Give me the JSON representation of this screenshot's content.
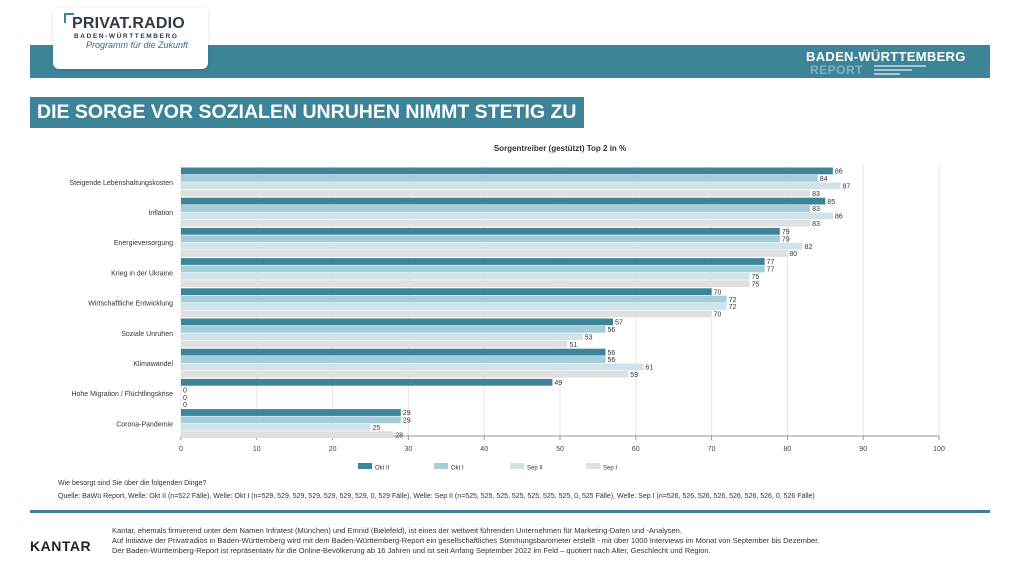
{
  "header": {
    "logo_title": "PRIVAT.RADIO",
    "logo_sub": "BADEN-WÜRTTEMBERG",
    "logo_tag": "Programm für die Zukunft",
    "report_title": "BADEN-WÜRTTEMBERG",
    "report_sub": "REPORT"
  },
  "title": "DIE SORGE VOR SOZIALEN UNRUHEN NIMMT STETIG ZU",
  "colors": {
    "accent": "#3d8499"
  },
  "chart_data": {
    "type": "bar",
    "orientation": "horizontal",
    "title": "Sorgentreiber (gestützt) Top 2 in %",
    "categories": [
      "Steigende Lebenshaltungskosten",
      "Inflation",
      "Energieversorgung",
      "Krieg in der Ukraine",
      "Wirtschaftliche Entwicklung",
      "Soziale Unruhen",
      "Klimawandel",
      "Hohe Migration / Flüchtlingskrise",
      "Corona-Pandemie"
    ],
    "series": [
      {
        "name": "Okt II",
        "color": "#3d8499",
        "values": [
          86,
          85,
          79,
          77,
          70,
          57,
          56,
          49,
          29
        ]
      },
      {
        "name": "Okt I",
        "color": "#a3cddb",
        "values": [
          84,
          83,
          79,
          77,
          72,
          56,
          56,
          0,
          29
        ]
      },
      {
        "name": "Sep II",
        "color": "#cfe3ea",
        "values": [
          87,
          86,
          82,
          75,
          72,
          53,
          61,
          0,
          25
        ]
      },
      {
        "name": "Sep I",
        "color": "#e0e0e0",
        "values": [
          83,
          83,
          80,
          75,
          70,
          51,
          59,
          0,
          28
        ]
      }
    ],
    "xlim": [
      0,
      100
    ],
    "xticks": [
      "0",
      "10",
      "20",
      "30",
      "40",
      "50",
      "60",
      "70",
      "80",
      "90",
      "100"
    ],
    "grid": true,
    "legend": "bottom"
  },
  "note": "Wie besorgt sind Sie über die folgenden Dinge?",
  "source": "Quelle: BaWü Report, Welle: Okt II (n=522 Fälle), Welle: Okt I (n=529, 529, 529, 529, 529, 529, 529, 0, 529 Fälle), Welle: Sep II (n=525, 525, 525, 525, 525, 525, 525, 0, 525 Fälle), Welle: Sep I (n=526, 526, 526, 526, 526, 526, 526, 0, 526 Fälle)",
  "footer": {
    "brand": "KANTAR",
    "line1": "Kantar, ehemals firmierend unter dem Namen Infratest (München) und Emnid (Bielefeld), ist eines der weltweit führenden Unternehmen für Marketing-Daten und -Analysen.",
    "line2": "Auf Initiative der Privatradios in Baden-Württemberg wird mit dem Baden-Württemberg-Report ein gesellschaftliches Stimmungsbarometer erstellt - mit über 1000 Interviews im Monat von September bis Dezember.",
    "line3": "Der Baden-Württemberg-Report ist repräsentativ für die Online-Bevölkerung ab 16 Jahren und ist seit Anfang September 2022 im Feld – quotiert nach Alter, Geschlecht und Region."
  }
}
